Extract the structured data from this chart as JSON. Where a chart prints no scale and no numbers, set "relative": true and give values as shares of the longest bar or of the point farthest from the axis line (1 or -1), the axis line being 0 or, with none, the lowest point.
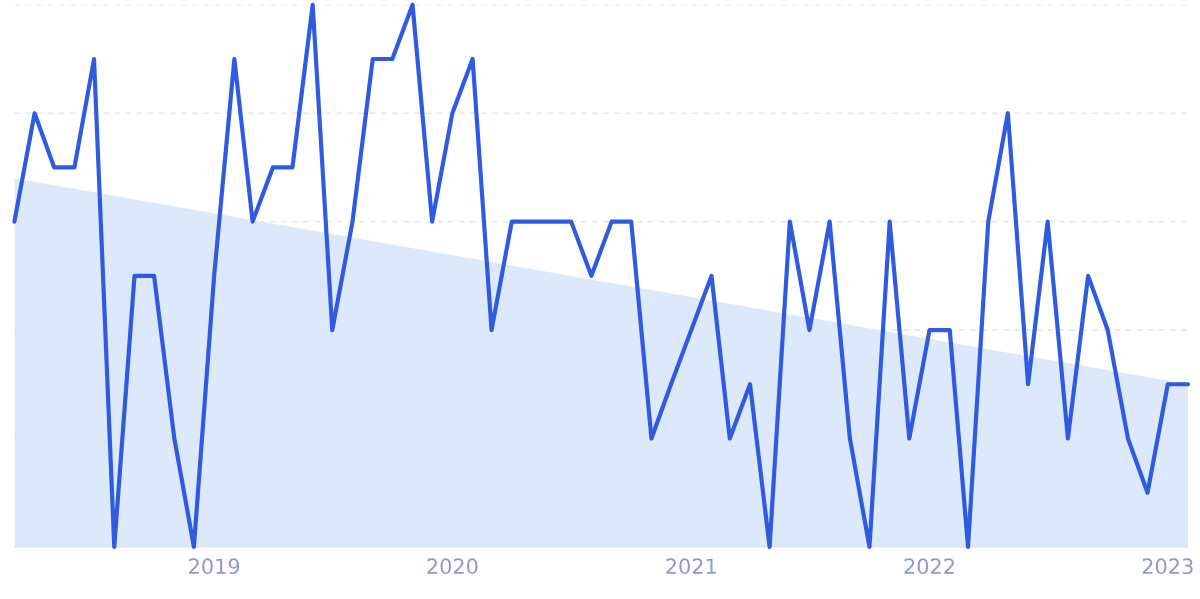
{
  "chart_data": {
    "type": "line",
    "relative": true,
    "x": [
      "2018-03",
      "2018-04",
      "2018-05",
      "2018-06",
      "2018-07",
      "2018-08",
      "2018-09",
      "2018-10",
      "2018-11",
      "2018-12",
      "2019-01",
      "2019-02",
      "2019-03",
      "2019-04",
      "2019-05",
      "2019-06",
      "2019-07",
      "2019-08",
      "2019-09",
      "2019-10",
      "2019-11",
      "2019-12",
      "2020-01",
      "2020-02",
      "2020-03",
      "2020-04",
      "2020-05",
      "2020-06",
      "2020-07",
      "2020-08",
      "2020-09",
      "2020-10",
      "2020-11",
      "2020-12",
      "2021-01",
      "2021-02",
      "2021-03",
      "2021-04",
      "2021-05",
      "2021-06",
      "2021-07",
      "2021-08",
      "2021-09",
      "2021-10",
      "2021-11",
      "2021-12",
      "2022-01",
      "2022-02",
      "2022-03",
      "2022-04",
      "2022-05",
      "2022-06",
      "2022-07",
      "2022-08",
      "2022-09",
      "2022-10",
      "2022-11",
      "2022-12",
      "2023-01",
      "2023-02"
    ],
    "series": [
      {
        "type": "area",
        "color": "#dce9fa",
        "x": [
          "2018-03",
          "2023-02"
        ],
        "values": [
          0.68,
          0.3
        ]
      },
      {
        "color": "#2f5be0",
        "values": [
          0.6,
          0.8,
          0.7,
          0.7,
          0.9,
          0,
          0.5,
          0.5,
          0.2,
          0,
          0.5,
          0.9,
          0.6,
          0.7,
          0.7,
          1,
          0.4,
          0.6,
          0.9,
          0.9,
          1,
          0.6,
          0.8,
          0.9,
          0.4,
          0.6,
          0.6,
          0.6,
          0.6,
          0.5,
          0.6,
          0.6,
          0.2,
          0.3,
          0.4,
          0.5,
          0.2,
          0.3,
          0,
          0.6,
          0.4,
          0.6,
          0.2,
          0,
          0.6,
          0.2,
          0.4,
          0.4,
          0,
          0.6,
          0.8,
          0.3,
          0.6,
          0.2,
          0.5,
          0.4,
          0.2,
          0.1,
          0.3,
          0.3
        ]
      }
    ],
    "xlim": [
      "2018-03",
      "2023-02"
    ],
    "xticks": [
      {
        "value": "2019",
        "label": "2019"
      },
      {
        "value": "2020",
        "label": "2020"
      },
      {
        "value": "2021",
        "label": "2021"
      },
      {
        "value": "2022",
        "label": "2022"
      },
      {
        "value": "2023",
        "label": "2023"
      }
    ],
    "grid": "y",
    "legend": false,
    "marker": "none",
    "line_style": "solid",
    "tick_labels": "x"
  }
}
